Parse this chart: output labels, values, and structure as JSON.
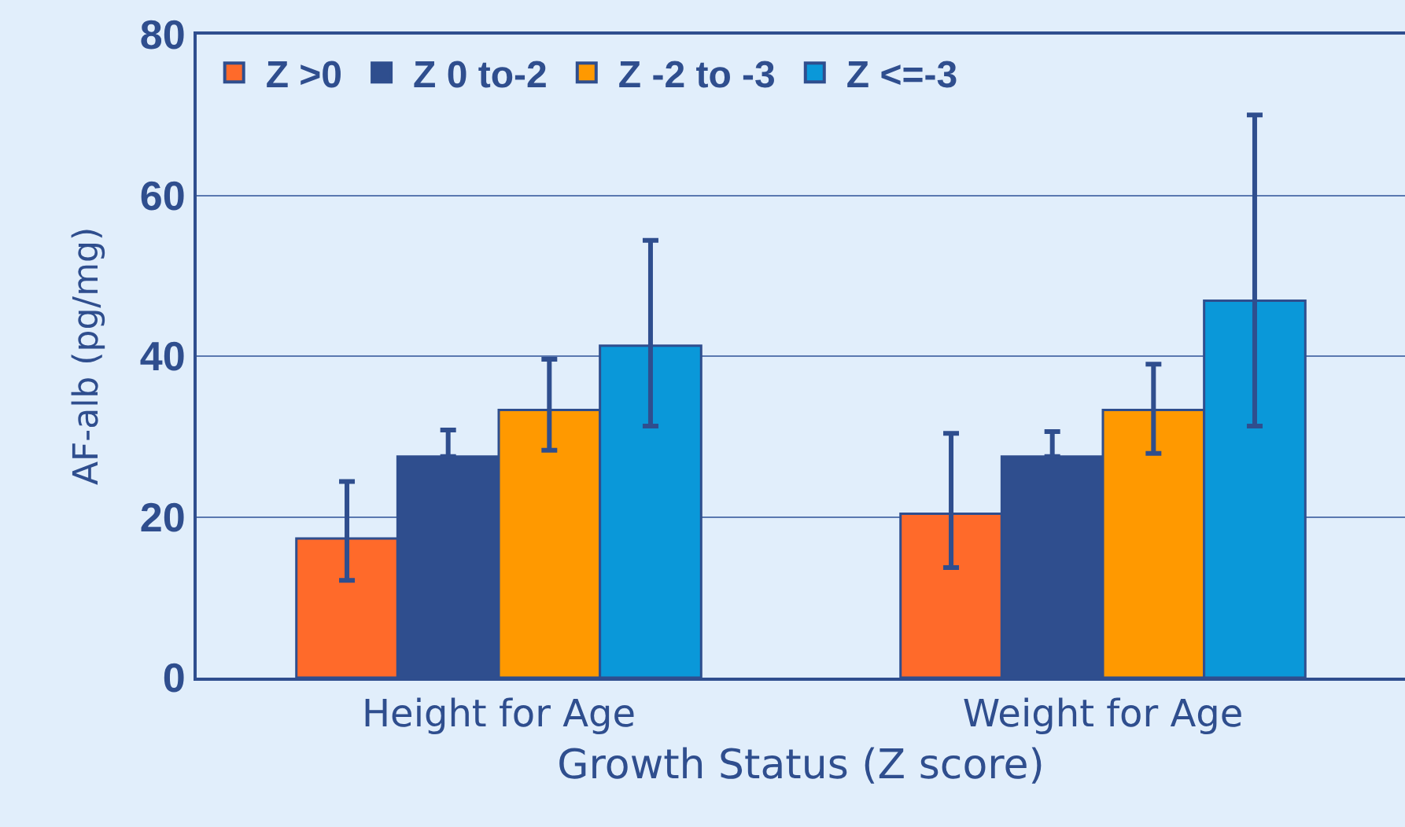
{
  "chart_data": {
    "type": "bar",
    "xlabel": "Growth Status (Z score)",
    "ylabel": "AF-alb (pg/mg)",
    "categories": [
      "Height for Age",
      "Weight for Age"
    ],
    "series": [
      {
        "name": "Z >0",
        "color": "#ff6a2a",
        "values": [
          17.3,
          20.4
        ],
        "errors": [
          [
            12.1,
            24.4
          ],
          [
            13.7,
            30.4
          ]
        ]
      },
      {
        "name": "Z 0 to-2",
        "color": "#2f4e8e",
        "values": [
          27.5,
          27.5
        ],
        "errors": [
          [
            27.5,
            30.8
          ],
          [
            27.5,
            30.6
          ]
        ]
      },
      {
        "name": "Z -2 to -3",
        "color": "#ff9900",
        "values": [
          33.3,
          33.3
        ],
        "errors": [
          [
            28.3,
            39.6
          ],
          [
            27.9,
            39.0
          ]
        ]
      },
      {
        "name": "Z <=-3",
        "color": "#0a98d9",
        "values": [
          41.3,
          46.9
        ],
        "errors": [
          [
            31.3,
            54.4
          ],
          [
            31.3,
            70.0
          ]
        ]
      }
    ],
    "ylim": [
      0,
      80
    ],
    "yticks": [
      0,
      20,
      40,
      60,
      80
    ],
    "grid": "y",
    "legend": "top left"
  }
}
